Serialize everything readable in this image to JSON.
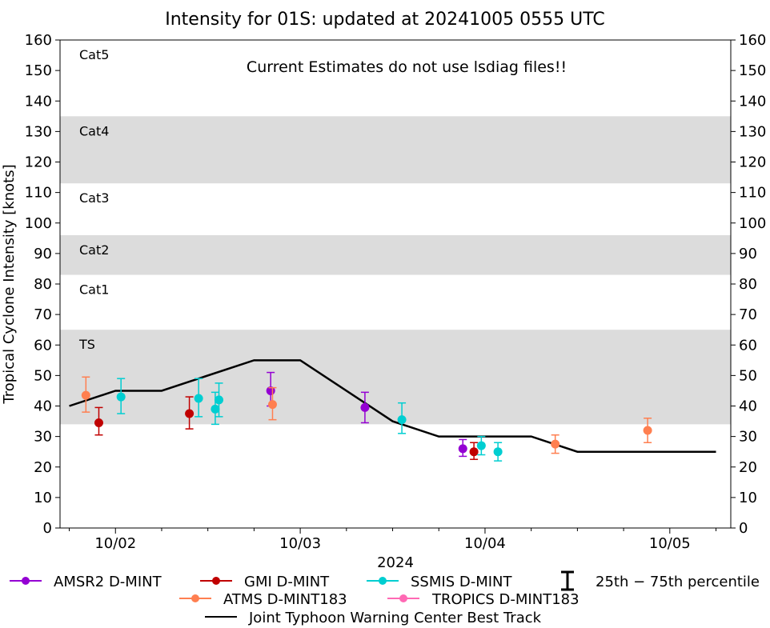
{
  "chart_data": {
    "type": "scatter",
    "title": "Intensity for 01S: updated at 20241005 0555 UTC",
    "annotation": "Current Estimates do not use lsdiag files!!",
    "xlabel": "2024",
    "ylabel": "Tropical Cyclone Intensity [knots]",
    "ylim": [
      0,
      160
    ],
    "xlim": [
      -0.3,
      3.33
    ],
    "y_ticks": [
      "0",
      "10",
      "20",
      "30",
      "40",
      "50",
      "60",
      "70",
      "80",
      "90",
      "100",
      "110",
      "120",
      "130",
      "140",
      "150",
      "160"
    ],
    "x_ticks": [
      {
        "value": 0,
        "label": "10/02"
      },
      {
        "value": 1,
        "label": "10/03"
      },
      {
        "value": 2,
        "label": "10/04"
      },
      {
        "value": 3,
        "label": "10/05"
      }
    ],
    "categories": [
      {
        "label": "TS",
        "low": 34,
        "high": 65,
        "shaded": true
      },
      {
        "label": "Cat1",
        "low": 65,
        "high": 83,
        "shaded": false
      },
      {
        "label": "Cat2",
        "low": 83,
        "high": 96,
        "shaded": true
      },
      {
        "label": "Cat3",
        "low": 96,
        "high": 113,
        "shaded": false
      },
      {
        "label": "Cat4",
        "low": 113,
        "high": 135,
        "shaded": true
      },
      {
        "label": "Cat5",
        "low": 135,
        "high": 160,
        "shaded": false
      }
    ],
    "best_track": {
      "name": "Joint Typhoon Warning Center Best Track",
      "color": "#000000",
      "x": [
        -0.25,
        0,
        0.25,
        0.75,
        1.0,
        1.5,
        1.75,
        2.0,
        2.25,
        2.5,
        2.75,
        3.0,
        3.25
      ],
      "y": [
        40,
        45,
        45,
        55,
        55,
        35,
        30,
        30,
        30,
        25,
        25,
        25,
        25
      ]
    },
    "series": [
      {
        "name": "AMSR2 D-MINT",
        "color": "#9400d3",
        "points": [
          {
            "x": 0.84,
            "y": 45,
            "lo": 40,
            "hi": 51
          },
          {
            "x": 1.35,
            "y": 39.5,
            "lo": 34.5,
            "hi": 44.5
          },
          {
            "x": 1.88,
            "y": 26,
            "lo": 23.5,
            "hi": 29
          }
        ]
      },
      {
        "name": "GMI D-MINT",
        "color": "#c00000",
        "points": [
          {
            "x": -0.09,
            "y": 34.5,
            "lo": 30.5,
            "hi": 39.5
          },
          {
            "x": 0.4,
            "y": 37.5,
            "lo": 32.5,
            "hi": 43
          },
          {
            "x": 1.94,
            "y": 25,
            "lo": 22.5,
            "hi": 28
          }
        ]
      },
      {
        "name": "SSMIS D-MINT",
        "color": "#00ced1",
        "points": [
          {
            "x": 0.03,
            "y": 43,
            "lo": 37.5,
            "hi": 49
          },
          {
            "x": 0.45,
            "y": 42.5,
            "lo": 36.5,
            "hi": 49
          },
          {
            "x": 0.54,
            "y": 39,
            "lo": 34,
            "hi": 44.5
          },
          {
            "x": 0.56,
            "y": 42,
            "lo": 36.5,
            "hi": 47.5
          },
          {
            "x": 1.55,
            "y": 35.5,
            "lo": 31,
            "hi": 41
          },
          {
            "x": 1.98,
            "y": 27,
            "lo": 24,
            "hi": 30
          },
          {
            "x": 2.07,
            "y": 25,
            "lo": 22,
            "hi": 28
          }
        ]
      },
      {
        "name": "ATMS D-MINT183",
        "color": "#ff7f50",
        "points": [
          {
            "x": -0.16,
            "y": 43.5,
            "lo": 38,
            "hi": 49.5
          },
          {
            "x": 0.85,
            "y": 40.5,
            "lo": 35.5,
            "hi": 46
          },
          {
            "x": 2.38,
            "y": 27.5,
            "lo": 24.5,
            "hi": 30.5
          },
          {
            "x": 2.88,
            "y": 32,
            "lo": 28,
            "hi": 36
          }
        ]
      },
      {
        "name": "TROPICS D-MINT183",
        "color": "#ff69b4",
        "points": []
      }
    ],
    "legend": {
      "placement": "bottom",
      "amsr2": "AMSR2 D-MINT",
      "gmi": "GMI D-MINT",
      "ssmis": "SSMIS D-MINT",
      "atms": "ATMS D-MINT183",
      "tropics": "TROPICS D-MINT183",
      "best_track": "Joint Typhoon Warning Center Best Track",
      "percentile": "25th − 75th percentile"
    }
  }
}
